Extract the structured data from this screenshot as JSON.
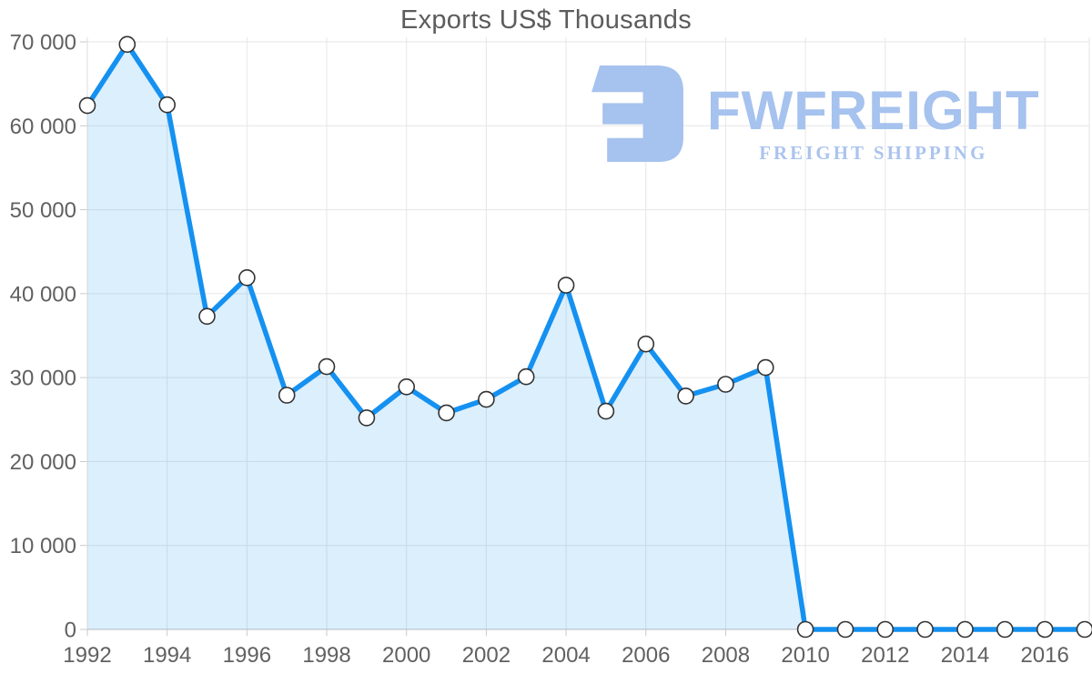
{
  "watermark": {
    "brand": "FWFREIGHT",
    "tagline": "FREIGHT SHIPPING",
    "color": "#a6c2ee",
    "tagline_color": "#abc4ee"
  },
  "chart_data": {
    "type": "area",
    "title": "Exports US$ Thousands",
    "x": [
      1992,
      1993,
      1994,
      1995,
      1996,
      1997,
      1998,
      1999,
      2000,
      2001,
      2002,
      2003,
      2004,
      2005,
      2006,
      2007,
      2008,
      2009,
      2010,
      2011,
      2012,
      2013,
      2014,
      2015,
      2016,
      2017
    ],
    "series": [
      {
        "name": "Exports US$ Thousands",
        "values": [
          62400,
          69700,
          62500,
          37300,
          41900,
          27900,
          31300,
          25200,
          28900,
          25800,
          27400,
          30100,
          41000,
          26000,
          34000,
          27800,
          29200,
          31200,
          0,
          0,
          0,
          0,
          0,
          0,
          0,
          0
        ]
      }
    ],
    "xlabel": "",
    "ylabel": "",
    "ylim": [
      0,
      70000
    ],
    "y_ticks": [
      0,
      10000,
      20000,
      30000,
      40000,
      50000,
      60000,
      70000
    ],
    "y_tick_labels": [
      "0",
      "10 000",
      "20 000",
      "30 000",
      "40 000",
      "50 000",
      "60 000",
      "70 000"
    ],
    "x_ticks": [
      1992,
      1994,
      1996,
      1998,
      2000,
      2002,
      2004,
      2006,
      2008,
      2010,
      2012,
      2014,
      2016
    ],
    "x_tick_labels": [
      "1992",
      "1994",
      "1996",
      "1998",
      "2000",
      "2002",
      "2004",
      "2006",
      "2008",
      "2010",
      "2012",
      "2014",
      "2016"
    ],
    "grid": true,
    "legend": false,
    "line_color": "#1491f1",
    "fill_color": "rgba(20,145,241,0.15)",
    "grid_color": "#e6e6e6",
    "axis_line_color": "#c9c9c9",
    "axis_label_color": "#616161",
    "marker": {
      "fill": "#ffffff",
      "stroke": "#333333",
      "radius": 8.5
    }
  }
}
